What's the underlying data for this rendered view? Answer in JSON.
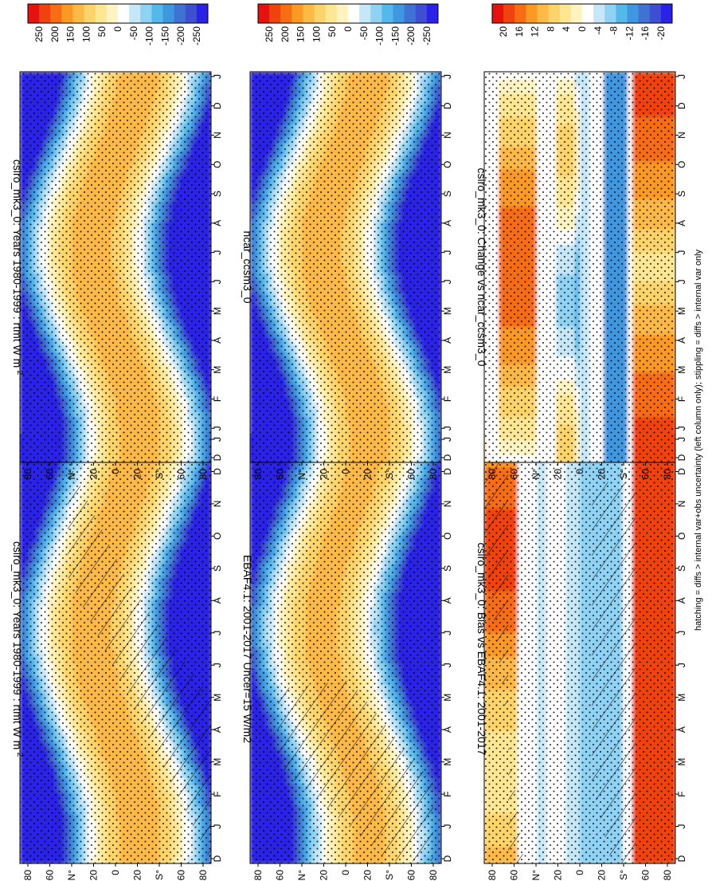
{
  "figure_note": "hatching = diffs > internal var+obs uncertainty (left column only); stippling = diffs > internal var only",
  "chart_data": [
    {
      "type": "heatmap",
      "title": "csiro_mk3_0: Years 1980-1999 : rtmt W m",
      "title_superscript": "-2",
      "x_months": [
        "D",
        "J",
        "F",
        "M",
        "A",
        "M",
        "J",
        "J",
        "A",
        "S",
        "O",
        "N",
        "D",
        "J"
      ],
      "y_ticks": [
        "80",
        "60",
        "N°",
        "20",
        "0",
        "20",
        "S°",
        "60",
        "80"
      ],
      "colorbar": [
        "250",
        "200",
        "150",
        "100",
        "50",
        "0",
        "-50",
        "-100",
        "-150",
        "-200",
        "-250"
      ],
      "stipple": true,
      "hatch": true
    },
    {
      "type": "heatmap",
      "title": "csiro_mk3_0: Years 1980-1999 : rtmt W m",
      "title_superscript": "-2",
      "x_months": [
        "D",
        "J",
        "F",
        "M",
        "A",
        "M",
        "J",
        "J",
        "A",
        "S",
        "O",
        "N",
        "D",
        "J"
      ],
      "y_ticks": [
        "80",
        "60",
        "N°",
        "20",
        "0",
        "20",
        "S°",
        "60",
        "80"
      ],
      "colorbar": [
        "250",
        "200",
        "150",
        "100",
        "50",
        "0",
        "-50",
        "-100",
        "-150",
        "-200",
        "-250"
      ],
      "stipple": true,
      "hatch": false
    },
    {
      "type": "heatmap",
      "title": "EBAF4.1: 2001-2017 Uncer=15 W/m2",
      "x_months": [
        "D",
        "J",
        "F",
        "M",
        "A",
        "M",
        "J",
        "J",
        "A",
        "S",
        "O",
        "N",
        "D",
        "J"
      ],
      "y_ticks": [
        "80",
        "60",
        "N°",
        "20",
        "0",
        "20",
        "S°",
        "60",
        "80"
      ],
      "colorbar": [
        "250",
        "200",
        "150",
        "100",
        "50",
        "0",
        "-50",
        "-100",
        "-150",
        "-200",
        "-250"
      ],
      "stipple": true,
      "hatch": true
    },
    {
      "type": "heatmap",
      "title": "ncar_ccsm3_0",
      "x_months": [
        "D",
        "J",
        "F",
        "M",
        "A",
        "M",
        "J",
        "J",
        "A",
        "S",
        "O",
        "N",
        "D",
        "J"
      ],
      "y_ticks": [
        "80",
        "60",
        "N°",
        "20",
        "0",
        "20",
        "S°",
        "60",
        "80"
      ],
      "colorbar": [
        "250",
        "200",
        "150",
        "100",
        "50",
        "0",
        "-50",
        "-100",
        "-150",
        "-200",
        "-250"
      ],
      "stipple": true,
      "hatch": false
    },
    {
      "type": "heatmap",
      "title": "csiro_mk3_0: Bias vs EBAF4.1: 2001-2017",
      "x_months": [
        "D",
        "J",
        "F",
        "M",
        "A",
        "M",
        "J",
        "J",
        "A",
        "S",
        "O",
        "N",
        "D",
        "J"
      ],
      "y_ticks": [
        "80",
        "60",
        "N°",
        "20",
        "0",
        "20",
        "S°",
        "60",
        "80"
      ],
      "colorbar": [
        "20",
        "16",
        "12",
        "8",
        "4",
        "0",
        "-4",
        "-8",
        "-12",
        "-16",
        "-20"
      ],
      "stipple": true,
      "hatch": true
    },
    {
      "type": "heatmap",
      "title": "csiro_mk3_0: Change vs ncar_ccsm3_0",
      "x_months": [
        "D",
        "J",
        "F",
        "M",
        "A",
        "M",
        "J",
        "J",
        "A",
        "S",
        "O",
        "N",
        "D",
        "J"
      ],
      "y_ticks": [
        "80",
        "60",
        "N°",
        "20",
        "0",
        "20",
        "S°",
        "60",
        "80"
      ],
      "colorbar": [
        "20",
        "16",
        "12",
        "8",
        "4",
        "0",
        "-4",
        "-8",
        "-12",
        "-16",
        "-20"
      ],
      "stipple": true,
      "hatch": false
    }
  ],
  "colors": [
    "#e6120f",
    "#f0420f",
    "#f76d14",
    "#fb9925",
    "#fdb946",
    "#fdd46b",
    "#fee693",
    "#fff3c2",
    "#ffffff",
    "#c6e7f8",
    "#8fd2f3",
    "#54b8eb",
    "#3f97e0",
    "#3f73d3",
    "#3e4fd1",
    "#2a22e6"
  ]
}
